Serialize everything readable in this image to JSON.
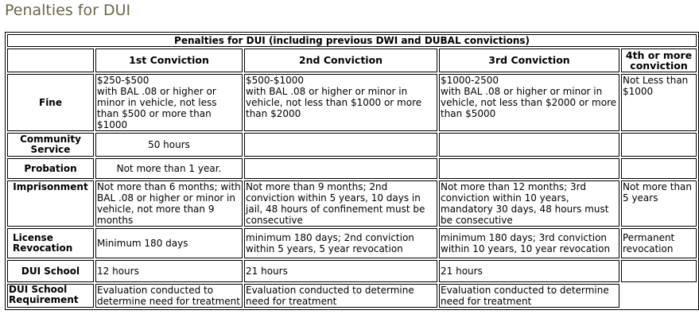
{
  "page": {
    "heading": "Penalties for DUI"
  },
  "table": {
    "title": "Penalties for DUI (including previous DWI and DUBAL convictions)",
    "columns": [
      "1st Conviction",
      "2nd Conviction",
      "3rd Conviction",
      "4th or more conviction"
    ],
    "rows": [
      {
        "label": "Fine",
        "cells": [
          "$250-$500\nwith BAL .08 or higher or minor in vehicle, not less than $500 or more than $1000",
          "$500-$1000\nwith BAL .08 or higher or minor in vehicle, not less than $1000 or more than $2000",
          "$1000-2500\nwith BAL .08 or higher or minor in vehicle, not less than $2000 or more than $5000",
          "Not Less than $1000"
        ]
      },
      {
        "label": "Community Service",
        "cells": [
          "50 hours",
          "",
          "",
          ""
        ]
      },
      {
        "label": "Probation",
        "cells": [
          "Not more than 1 year.",
          "",
          "",
          ""
        ]
      },
      {
        "label": "Imprisonment",
        "cells": [
          "Not more than 6 months; with BAL .08 or higher or minor in vehicle, not more than 9 months",
          "Not more than 9 months; 2nd conviction within 5 years, 10 days in jail, 48 hours of confinement must be consecutive",
          "Not more than 12 months; 3rd conviction within 10 years, mandatory 30 days, 48 hours must be consecutive",
          "Not more than 5 years"
        ]
      },
      {
        "label": "License Revocation",
        "cells": [
          "Minimum 180 days",
          "minimum 180 days; 2nd conviction within 5 years, 5 year revocation",
          "minimum 180 days; 3rd conviction within 10 years, 10 year revocation",
          "Permanent revocation"
        ]
      },
      {
        "label": "DUI School",
        "cells": [
          "12 hours",
          "21 hours",
          "21 hours",
          ""
        ]
      },
      {
        "label": "DUI School Requirement",
        "cells": [
          "Evaluation conducted to determine need for treatment",
          "Evaluation conducted to determine need for treatment",
          "Evaluation conducted to determine need for treatment",
          ""
        ]
      }
    ]
  }
}
